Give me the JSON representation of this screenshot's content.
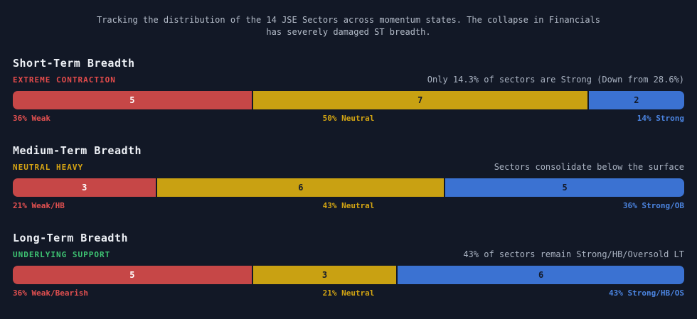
{
  "page": {
    "background": "#121826"
  },
  "header": {
    "line1": "Tracking the distribution of the 14 JSE Sectors across momentum states. The collapse in Financials",
    "line2": "has severely damaged ST breadth."
  },
  "colors": {
    "weak_segment": "#c64747",
    "neutral_segment": "#c9a112",
    "strong_segment": "#3b72d2",
    "weak_label": "#e25050",
    "neutral_label": "#d2a413",
    "strong_label": "#4b84e0",
    "annotation_text": "#aab3c2",
    "background": "#121826"
  },
  "chart_data": [
    {
      "type": "bar",
      "stacked": true,
      "title": "Short-Term Breadth",
      "subtitle": "EXTREME CONTRACTION",
      "annotation": "Only 14.3% of sectors are Strong (Down from 28.6%)",
      "categories": [
        "Weak",
        "Neutral",
        "Strong"
      ],
      "values": [
        5,
        7,
        2
      ],
      "percent_labels": [
        "36% Weak",
        "50% Neutral",
        "14% Strong"
      ],
      "total": 14,
      "legend_position": "none"
    },
    {
      "type": "bar",
      "stacked": true,
      "title": "Medium-Term Breadth",
      "subtitle": "NEUTRAL HEAVY",
      "annotation": "Sectors consolidate below the surface",
      "categories": [
        "Weak/HB",
        "Neutral",
        "Strong/OB"
      ],
      "values": [
        3,
        6,
        5
      ],
      "percent_labels": [
        "21% Weak/HB",
        "43% Neutral",
        "36% Strong/OB"
      ],
      "total": 14,
      "legend_position": "none"
    },
    {
      "type": "bar",
      "stacked": true,
      "title": "Long-Term Breadth",
      "subtitle": "UNDERLYING SUPPORT",
      "annotation": "43% of sectors remain Strong/HB/Oversold LT",
      "categories": [
        "Weak/Bearish",
        "Neutral",
        "Strong/HB/OS"
      ],
      "values": [
        5,
        3,
        6
      ],
      "percent_labels": [
        "36% Weak/Bearish",
        "21% Neutral",
        "43% Strong/HB/OS"
      ],
      "total": 14,
      "legend_position": "none"
    }
  ],
  "sections": [
    {
      "title": "Short-Term Breadth",
      "status": "EXTREME CONTRACTION",
      "status_color": "#e34b4b",
      "annotation": "Only 14.3% of sectors are Strong (Down from 28.6%)",
      "segments": [
        {
          "key": "weak",
          "count": 5,
          "color": "#c64747",
          "value_color": "#ffffff"
        },
        {
          "key": "neutral",
          "count": 7,
          "color": "#c9a112",
          "value_color": "#141b2b"
        },
        {
          "key": "strong",
          "count": 2,
          "color": "#3b72d2",
          "value_color": "#141b2b"
        }
      ],
      "footer": {
        "left": "36% Weak",
        "center": "50% Neutral",
        "right": "14% Strong"
      }
    },
    {
      "title": "Medium-Term Breadth",
      "status": "NEUTRAL HEAVY",
      "status_color": "#d6a414",
      "annotation": "Sectors consolidate below the surface",
      "segments": [
        {
          "key": "weak",
          "count": 3,
          "color": "#c64747",
          "value_color": "#ffffff"
        },
        {
          "key": "neutral",
          "count": 6,
          "color": "#c9a112",
          "value_color": "#141b2b"
        },
        {
          "key": "strong",
          "count": 5,
          "color": "#3b72d2",
          "value_color": "#141b2b"
        }
      ],
      "footer": {
        "left": "21% Weak/HB",
        "center": "43% Neutral",
        "right": "36% Strong/OB"
      }
    },
    {
      "title": "Long-Term Breadth",
      "status": "UNDERLYING SUPPORT",
      "status_color": "#3ec473",
      "annotation": "43% of sectors remain Strong/HB/Oversold LT",
      "segments": [
        {
          "key": "weak",
          "count": 5,
          "color": "#c64747",
          "value_color": "#ffffff"
        },
        {
          "key": "neutral",
          "count": 3,
          "color": "#c9a112",
          "value_color": "#141b2b"
        },
        {
          "key": "strong",
          "count": 6,
          "color": "#3b72d2",
          "value_color": "#141b2b"
        }
      ],
      "footer": {
        "left": "36% Weak/Bearish",
        "center": "21% Neutral",
        "right": "43% Strong/HB/OS"
      }
    }
  ]
}
